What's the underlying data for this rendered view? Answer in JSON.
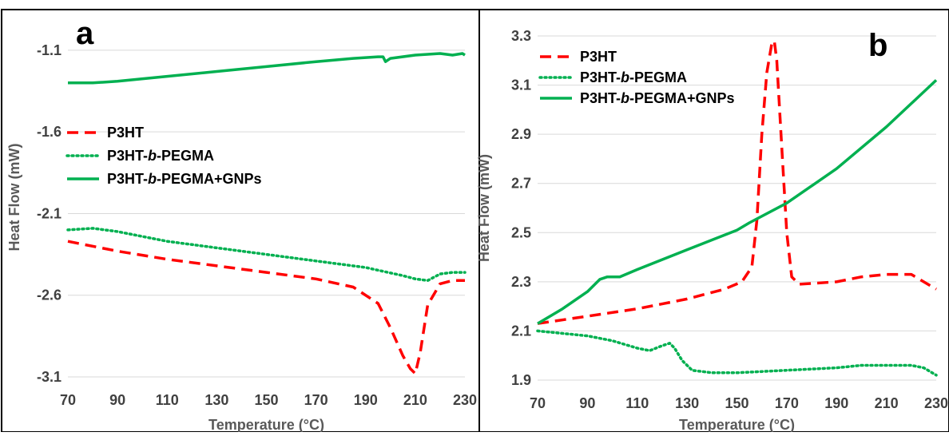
{
  "colors": {
    "p3ht": "#ff0000",
    "p3ht_b_pegma": "#00b050",
    "p3ht_b_pegma_gnps": "#00b050",
    "gridline": "#d9d9d9",
    "tick_text": "#404040",
    "axis_title": "#595959"
  },
  "chart_data": [
    {
      "type": "line",
      "panel_label": "a",
      "xlabel": "Temperature (°C)",
      "ylabel": "Heat Flow (mW)",
      "xlim": [
        70,
        230
      ],
      "ylim": [
        -3.1,
        -0.9
      ],
      "x_ticks": [
        "70",
        "90",
        "110",
        "130",
        "150",
        "170",
        "190",
        "210",
        "230"
      ],
      "y_ticks": [
        "-3.1",
        "-2.6",
        "-2.1",
        "-1.6",
        "-1.1"
      ],
      "grid": "horizontal",
      "legend_position": "left",
      "legend": [
        {
          "prefix": "P3HT",
          "italic": "",
          "suffix": "",
          "style": "dashed",
          "color": "#ff0000"
        },
        {
          "prefix": "P3HT-",
          "italic": "b",
          "suffix": "-PEGMA",
          "style": "dotted",
          "color": "#00b050"
        },
        {
          "prefix": "P3HT-",
          "italic": "b",
          "suffix": "-PEGMA+GNPs",
          "style": "solid",
          "color": "#00b050"
        }
      ],
      "series": [
        {
          "name": "P3HT",
          "style": "dashed",
          "color": "#ff0000",
          "x": [
            70,
            90,
            110,
            130,
            150,
            170,
            185,
            195,
            200,
            205,
            208,
            210,
            212,
            215,
            220,
            225,
            230
          ],
          "y": [
            -2.27,
            -2.33,
            -2.38,
            -2.42,
            -2.46,
            -2.5,
            -2.55,
            -2.65,
            -2.8,
            -2.97,
            -3.05,
            -3.08,
            -2.95,
            -2.66,
            -2.53,
            -2.51,
            -2.51
          ]
        },
        {
          "name": "P3HT-b-PEGMA",
          "style": "dotted",
          "color": "#00b050",
          "x": [
            70,
            80,
            90,
            110,
            130,
            150,
            170,
            190,
            205,
            210,
            215,
            220,
            225,
            230
          ],
          "y": [
            -2.2,
            -2.19,
            -2.21,
            -2.27,
            -2.31,
            -2.35,
            -2.39,
            -2.43,
            -2.48,
            -2.5,
            -2.51,
            -2.47,
            -2.46,
            -2.46
          ]
        },
        {
          "name": "P3HT-b-PEGMA+GNPs",
          "style": "solid",
          "color": "#00b050",
          "x": [
            70,
            80,
            90,
            110,
            130,
            150,
            170,
            185,
            195,
            197,
            198,
            200,
            210,
            220,
            225,
            229,
            230
          ],
          "y": [
            -1.3,
            -1.3,
            -1.29,
            -1.26,
            -1.23,
            -1.2,
            -1.17,
            -1.15,
            -1.14,
            -1.14,
            -1.17,
            -1.15,
            -1.13,
            -1.12,
            -1.13,
            -1.12,
            -1.13
          ]
        }
      ]
    },
    {
      "type": "line",
      "panel_label": "b",
      "xlabel": "Temperature (°C)",
      "ylabel": "Heat Flow (mW)",
      "xlim": [
        70,
        230
      ],
      "ylim": [
        1.9,
        3.3
      ],
      "x_ticks": [
        "70",
        "90",
        "110",
        "130",
        "150",
        "170",
        "190",
        "210",
        "230"
      ],
      "y_ticks": [
        "1.9",
        "2.1",
        "2.3",
        "2.5",
        "2.7",
        "2.9",
        "3.1",
        "3.3"
      ],
      "grid": "horizontal",
      "legend_position": "top-left",
      "legend": [
        {
          "prefix": "P3HT",
          "italic": "",
          "suffix": "",
          "style": "dashed",
          "color": "#ff0000"
        },
        {
          "prefix": "P3HT-",
          "italic": "b",
          "suffix": "-PEGMA",
          "style": "dotted",
          "color": "#00b050"
        },
        {
          "prefix": "P3HT-",
          "italic": "b",
          "suffix": "-PEGMA+GNPs",
          "style": "solid",
          "color": "#00b050"
        }
      ],
      "series": [
        {
          "name": "P3HT",
          "style": "dashed",
          "color": "#ff0000",
          "x": [
            70,
            90,
            110,
            130,
            145,
            152,
            156,
            158,
            160,
            162,
            164,
            165,
            166,
            168,
            170,
            172,
            175,
            190,
            200,
            210,
            220,
            230
          ],
          "y": [
            2.13,
            2.16,
            2.19,
            2.23,
            2.27,
            2.3,
            2.36,
            2.55,
            2.9,
            3.15,
            3.27,
            3.28,
            3.2,
            2.85,
            2.5,
            2.32,
            2.29,
            2.3,
            2.32,
            2.33,
            2.33,
            2.27
          ]
        },
        {
          "name": "P3HT-b-PEGMA",
          "style": "dotted",
          "color": "#00b050",
          "x": [
            70,
            80,
            90,
            100,
            110,
            115,
            120,
            123,
            125,
            128,
            132,
            140,
            150,
            170,
            190,
            200,
            210,
            220,
            225,
            230
          ],
          "y": [
            2.1,
            2.09,
            2.08,
            2.06,
            2.03,
            2.02,
            2.04,
            2.05,
            2.03,
            1.98,
            1.94,
            1.93,
            1.93,
            1.94,
            1.95,
            1.96,
            1.96,
            1.96,
            1.95,
            1.92
          ]
        },
        {
          "name": "P3HT-b-PEGMA+GNPs",
          "style": "solid",
          "color": "#00b050",
          "x": [
            70,
            80,
            90,
            95,
            98,
            103,
            110,
            130,
            150,
            155,
            170,
            190,
            210,
            230
          ],
          "y": [
            2.13,
            2.19,
            2.26,
            2.31,
            2.32,
            2.32,
            2.35,
            2.43,
            2.51,
            2.54,
            2.62,
            2.76,
            2.93,
            3.12
          ]
        }
      ]
    }
  ]
}
